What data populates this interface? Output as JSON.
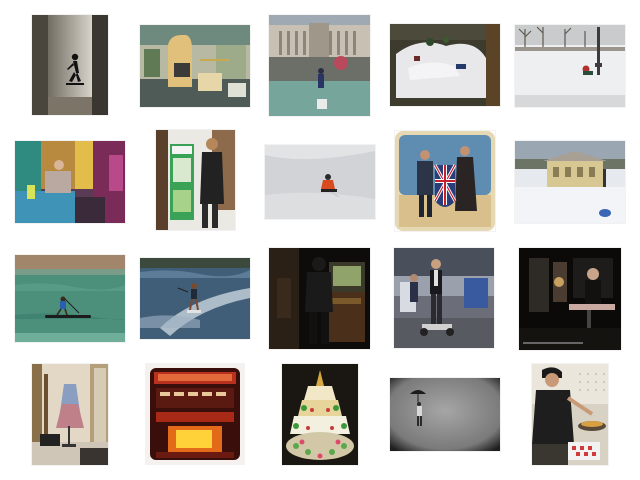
{
  "gallery": {
    "thumbnails": [
      {
        "subject": "person-on-skateboard-against-wall"
      },
      {
        "subject": "library-reading-chairs"
      },
      {
        "subject": "fountain-square-with-building"
      },
      {
        "subject": "snow-miniature-diorama"
      },
      {
        "subject": "snowy-park-with-sled"
      },
      {
        "subject": "colorful-kitchen-room"
      },
      {
        "subject": "woman-at-tourist-kiosk"
      },
      {
        "subject": "sled-rider-on-snow"
      },
      {
        "subject": "costumed-people-with-shield"
      },
      {
        "subject": "house-on-snow-field"
      },
      {
        "subject": "paddleboard-on-water"
      },
      {
        "subject": "water-skier"
      },
      {
        "subject": "man-at-arcade-machine"
      },
      {
        "subject": "man-on-segway-in-exhibit-hall"
      },
      {
        "subject": "man-on-stage-with-skateboard"
      },
      {
        "subject": "dress-display-in-room"
      },
      {
        "subject": "jukebox"
      },
      {
        "subject": "decorated-pagoda-cake"
      },
      {
        "subject": "person-with-umbrella-in-rain"
      },
      {
        "subject": "man-cooking-in-kitchen"
      }
    ]
  }
}
